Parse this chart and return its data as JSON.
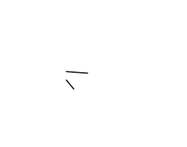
{
  "background_color": "#ffffff",
  "line_color": "#1a1a1a",
  "line_width": 1.3,
  "font_size": 7.5,
  "fig_width": 2.71,
  "fig_height": 2.14,
  "dpi": 100
}
